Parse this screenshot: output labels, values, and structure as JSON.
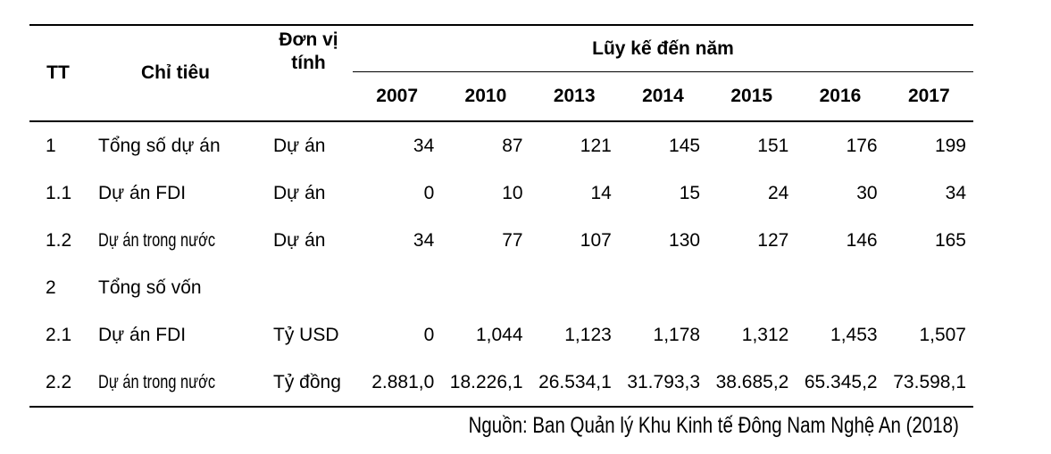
{
  "table": {
    "header": {
      "tt": "TT",
      "chi_tieu": "Chỉ tiêu",
      "don_vi_tinh": "Đơn vị tính",
      "luy_ke": "Lũy kế đến năm",
      "years": [
        "2007",
        "2010",
        "2013",
        "2014",
        "2015",
        "2016",
        "2017"
      ]
    },
    "rows": [
      {
        "tt": "1",
        "label": "Tổng số dự án",
        "unit": "Dự án",
        "values": [
          "34",
          "87",
          "121",
          "145",
          "151",
          "176",
          "199"
        ]
      },
      {
        "tt": "1.1",
        "label": "Dự án FDI",
        "unit": "Dự án",
        "values": [
          "0",
          "10",
          "14",
          "15",
          "24",
          "30",
          "34"
        ]
      },
      {
        "tt": "1.2",
        "label": "Dự án trong nước",
        "unit": "Dự án",
        "values": [
          "34",
          "77",
          "107",
          "130",
          "127",
          "146",
          "165"
        ]
      },
      {
        "tt": "2",
        "label": "Tổng số vốn",
        "unit": "",
        "values": [
          "",
          "",
          "",
          "",
          "",
          "",
          ""
        ]
      },
      {
        "tt": "2.1",
        "label": "Dự án FDI",
        "unit": "Tỷ USD",
        "values": [
          "0",
          "1,044",
          "1,123",
          "1,178",
          "1,312",
          "1,453",
          "1,507"
        ]
      },
      {
        "tt": "2.2",
        "label": "Dự án trong nước",
        "unit": "Tỷ đồng",
        "values": [
          "2.881,0",
          "18.226,1",
          "26.534,1",
          "31.793,3",
          "38.685,2",
          "65.345,2",
          "73.598,1"
        ]
      }
    ]
  },
  "footer": {
    "source": "Nguồn: Ban Quản lý Khu Kinh tế Đông Nam Nghệ An (2018)"
  }
}
